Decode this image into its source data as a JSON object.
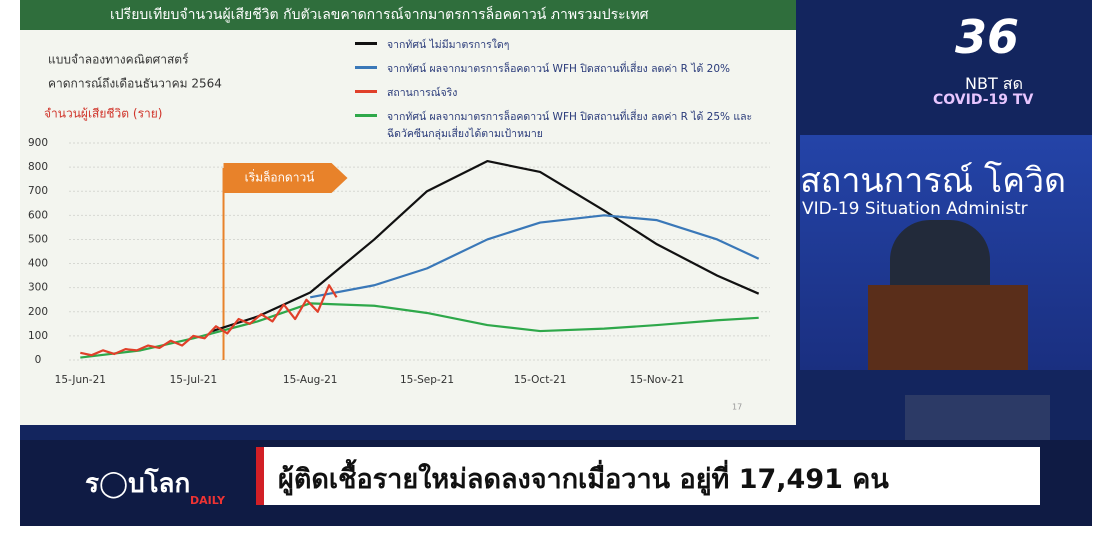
{
  "chart_data": {
    "type": "line",
    "title": "เปรียบเทียบจำนวนผู้เสียชีวิต กับตัวเลขคาดการณ์จากมาตรการล็อคดาวน์ ภาพรวมประเทศ",
    "subtitle": [
      "แบบจำลองทางคณิตศาสตร์",
      "คาดการณ์ถึงเดือนธันวาคม 2564"
    ],
    "y_label": "จำนวนผู้เสียชีวิต (ราย)",
    "annotation": {
      "text": "เริ่มล็อกดาวน์",
      "x": "2021-07-23"
    },
    "page_number": "17",
    "xlim": [
      "2021-06-12",
      "2021-12-15"
    ],
    "xticks": [
      {
        "value": "2021-06-15",
        "label": "15-Jun-21"
      },
      {
        "value": "2021-07-15",
        "label": "15-Jul-21"
      },
      {
        "value": "2021-08-15",
        "label": "15-Aug-21"
      },
      {
        "value": "2021-09-15",
        "label": "15-Sep-21"
      },
      {
        "value": "2021-10-15",
        "label": "15-Oct-21"
      },
      {
        "value": "2021-11-15",
        "label": "15-Nov-21"
      }
    ],
    "ylim": [
      0,
      900
    ],
    "yticks": [
      0,
      100,
      200,
      300,
      400,
      500,
      600,
      700,
      800,
      900
    ],
    "grid": true,
    "series": [
      {
        "name": "จากทัศน์ ไม่มีมาตรการใดๆ",
        "color": "#111111",
        "x": [
          "2021-07-20",
          "2021-08-01",
          "2021-08-15",
          "2021-09-01",
          "2021-09-15",
          "2021-10-01",
          "2021-10-15",
          "2021-11-01",
          "2021-11-15",
          "2021-12-01",
          "2021-12-12"
        ],
        "values": [
          120,
          180,
          280,
          500,
          700,
          825,
          780,
          620,
          480,
          350,
          275
        ]
      },
      {
        "name": "จากทัศน์ ผลจากมาตรการล็อคดาวน์ WFH ปิดสถานที่เสี่ยง ลดค่า R ได้ 20%",
        "color": "#3a78b8",
        "x": [
          "2021-08-15",
          "2021-09-01",
          "2021-09-15",
          "2021-10-01",
          "2021-10-15",
          "2021-11-01",
          "2021-11-15",
          "2021-12-01",
          "2021-12-12"
        ],
        "values": [
          260,
          310,
          380,
          500,
          570,
          600,
          580,
          500,
          420
        ]
      },
      {
        "name": "สถานการณ์จริง",
        "color": "#e0402a",
        "x": [
          "2021-06-15",
          "2021-06-18",
          "2021-06-21",
          "2021-06-24",
          "2021-06-27",
          "2021-06-30",
          "2021-07-03",
          "2021-07-06",
          "2021-07-09",
          "2021-07-12",
          "2021-07-15",
          "2021-07-18",
          "2021-07-21",
          "2021-07-24",
          "2021-07-27",
          "2021-07-30",
          "2021-08-02",
          "2021-08-05",
          "2021-08-08",
          "2021-08-11",
          "2021-08-14",
          "2021-08-17",
          "2021-08-20",
          "2021-08-22"
        ],
        "values": [
          30,
          20,
          40,
          25,
          45,
          40,
          60,
          50,
          80,
          60,
          100,
          90,
          140,
          110,
          170,
          150,
          190,
          160,
          230,
          170,
          250,
          200,
          310,
          260
        ]
      },
      {
        "name": "จากทัศน์ ผลจากมาตรการล็อคดาวน์ WFH ปิดสถานที่เสี่ยง ลดค่า R ได้ 25% และฉีดวัคซีนกลุ่มเสี่ยงได้ตามเป้าหมาย",
        "color": "#2ea84a",
        "x": [
          "2021-06-15",
          "2021-07-01",
          "2021-07-15",
          "2021-08-01",
          "2021-08-15",
          "2021-09-01",
          "2021-09-15",
          "2021-10-01",
          "2021-10-15",
          "2021-11-01",
          "2021-11-15",
          "2021-12-01",
          "2021-12-12"
        ],
        "values": [
          10,
          40,
          90,
          160,
          235,
          225,
          195,
          145,
          120,
          130,
          145,
          165,
          175
        ]
      }
    ]
  },
  "broadcast": {
    "channel": "36",
    "channel_sub": "NBT สด",
    "channel_tag": "COVID-19 TV",
    "backdrop": [
      "สถานการณ์ โควิด",
      "VID-19 Situation Administr"
    ],
    "show_logo": "ร◯บโลก",
    "show_logo_sub": "DAILY",
    "headline": "ผู้ติดเชื้อรายใหม่ลดลงจากเมื่อวาน อยู่ที่ 17,491 คน"
  }
}
